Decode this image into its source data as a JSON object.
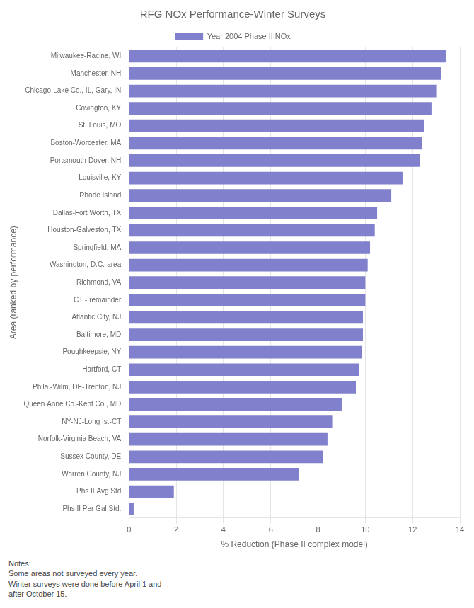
{
  "chart_data": {
    "type": "bar",
    "orientation": "horizontal",
    "title": "RFG NOx Performance-Winter Surveys",
    "xlabel": "% Reduction (Phase II complex model)",
    "ylabel": "Area (ranked by performance)",
    "annotations": [
      "Notes:\nSome areas not surveyed every year.\nWinter surveys were done before April 1 and\nafter October 15."
    ],
    "categories": [
      "Milwaukee-Racine, WI",
      "Manchester, NH",
      "Chicago-Lake Co., IL, Gary, IN",
      "Covington, KY",
      "St. Louis, MO",
      "Boston-Worcester, MA",
      "Portsmouth-Dover, NH",
      "Louisville, KY",
      "Rhode Island",
      "Dallas-Fort Worth, TX",
      "Houston-Galveston, TX",
      "Springfield, MA",
      "Washington, D.C.-area",
      "Richmond, VA",
      "CT - remainder",
      "Atlantic City, NJ",
      "Baltimore, MD",
      "Poughkeepsie, NY",
      "Hartford, CT",
      "Phila.-Wilm, DE-Trenton, NJ",
      "Queen Anne Co.-Kent Co., MD",
      "NY-NJ-Long Is.-CT",
      "Norfolk-Virginia Beach, VA",
      "Sussex County, DE",
      "Warren County, NJ",
      "Phs II Avg Std",
      "Phs II Per Gal Std."
    ],
    "series": [
      {
        "name": "Year 2004 Phase II NOx",
        "color": "#8080cc",
        "values": [
          13.4,
          13.2,
          13.0,
          12.8,
          12.5,
          12.4,
          12.3,
          11.6,
          11.1,
          10.5,
          10.4,
          10.2,
          10.1,
          10.0,
          10.0,
          9.9,
          9.9,
          9.85,
          9.75,
          9.6,
          9.0,
          8.6,
          8.4,
          8.2,
          7.2,
          1.9,
          0.2
        ]
      }
    ],
    "xlim": [
      0,
      14
    ],
    "xticks": [
      0,
      2,
      4,
      6,
      8,
      10,
      12,
      14
    ],
    "grid": true,
    "legend": "top"
  }
}
